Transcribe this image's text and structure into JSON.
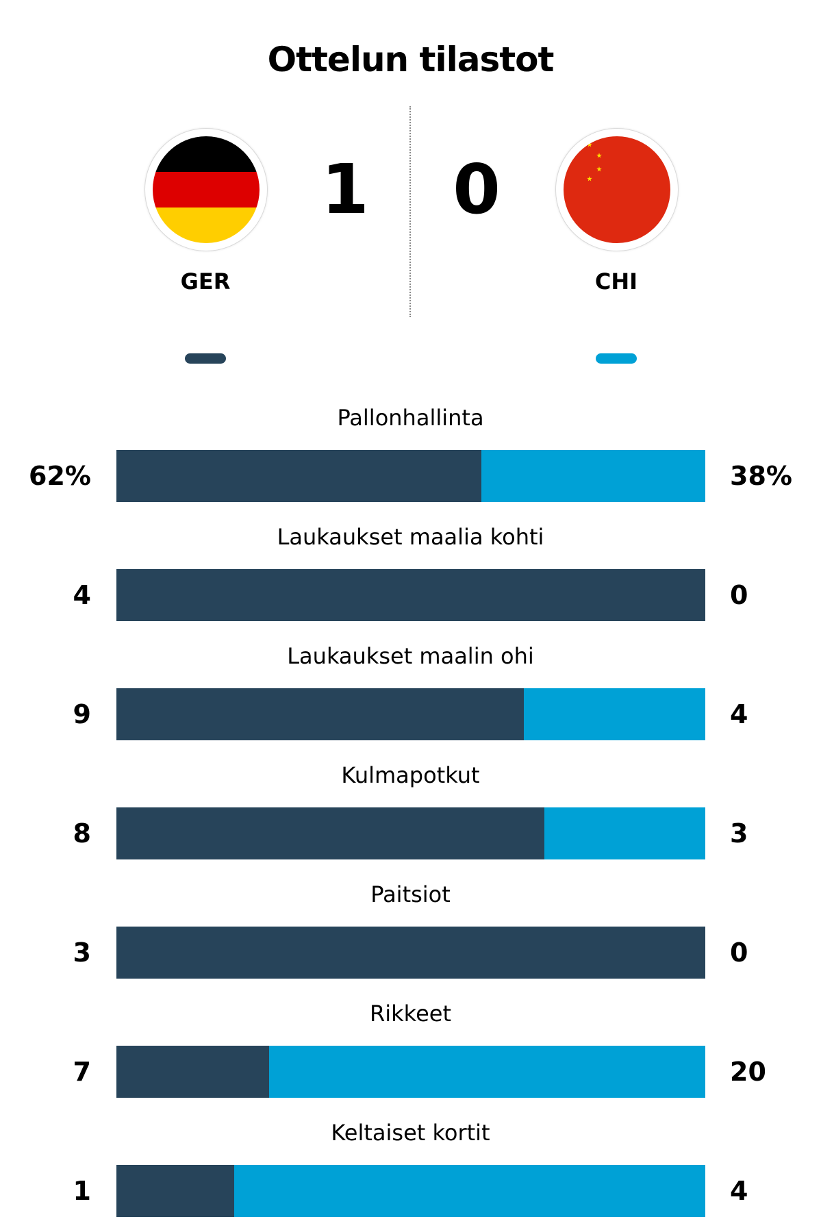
{
  "title": "Ottelun tilastot",
  "home": {
    "code": "GER",
    "score": "1",
    "flag_icon": "germany-flag-icon",
    "color": "#27445a"
  },
  "away": {
    "code": "CHI",
    "score": "0",
    "flag_icon": "china-flag-icon",
    "color": "#00a1d6"
  },
  "stats": [
    {
      "label": "Pallonhallinta",
      "home": "62%",
      "away": "38%",
      "home_value": 62,
      "away_value": 38
    },
    {
      "label": "Laukaukset maalia kohti",
      "home": "4",
      "away": "0",
      "home_value": 4,
      "away_value": 0
    },
    {
      "label": "Laukaukset maalin ohi",
      "home": "9",
      "away": "4",
      "home_value": 9,
      "away_value": 4
    },
    {
      "label": "Kulmapotkut",
      "home": "8",
      "away": "3",
      "home_value": 8,
      "away_value": 3
    },
    {
      "label": "Paitsiot",
      "home": "3",
      "away": "0",
      "home_value": 3,
      "away_value": 0
    },
    {
      "label": "Rikkeet",
      "home": "7",
      "away": "20",
      "home_value": 7,
      "away_value": 20
    },
    {
      "label": "Keltaiset kortit",
      "home": "1",
      "away": "4",
      "home_value": 1,
      "away_value": 4
    }
  ]
}
